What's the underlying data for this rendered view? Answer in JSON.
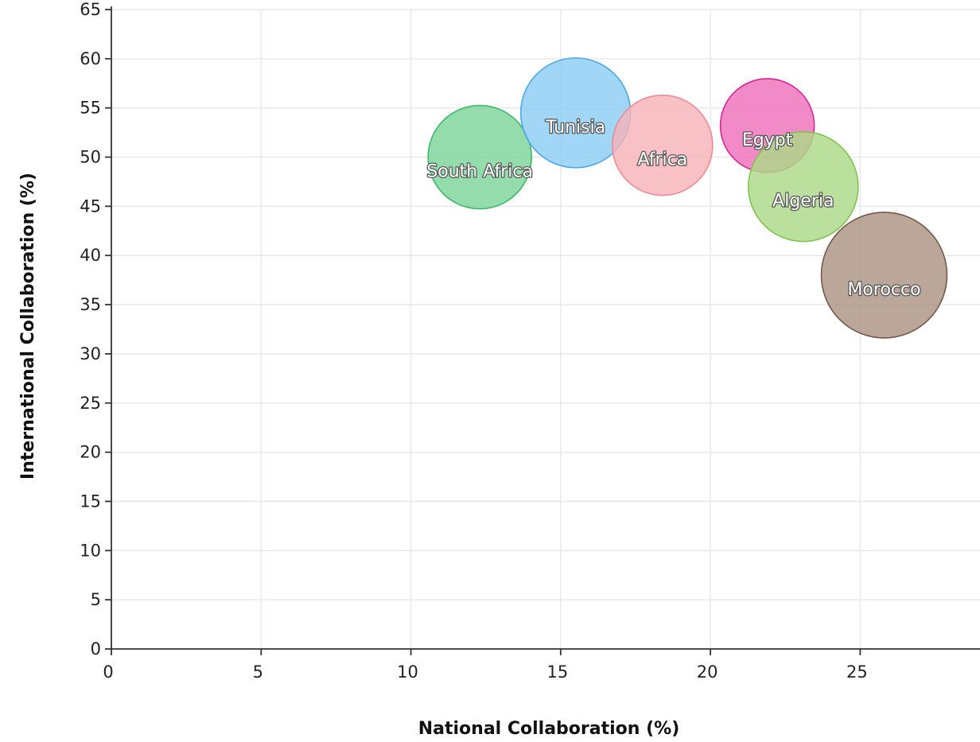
{
  "chart_data": {
    "type": "scatter",
    "xlabel": "National Collaboration (%)",
    "ylabel": "International Collaboration (%)",
    "xlim": [
      0,
      29
    ],
    "ylim": [
      0,
      65
    ],
    "xticks": [
      0,
      5,
      10,
      15,
      20,
      25
    ],
    "yticks": [
      0,
      5,
      10,
      15,
      20,
      25,
      30,
      35,
      40,
      45,
      50,
      55,
      60,
      65
    ],
    "grid": true,
    "series": [
      {
        "name": "South Africa",
        "x": 12.3,
        "y": 50.0,
        "color": "#7dd49a",
        "edge": "#3fb86a",
        "label_dx": 0,
        "label_dy": 1
      },
      {
        "name": "Tunisia",
        "x": 15.5,
        "y": 54.5,
        "color": "#8ecdf5",
        "edge": "#4aa8e8",
        "label_dx": 0,
        "label_dy": 1
      },
      {
        "name": "Africa",
        "x": 18.4,
        "y": 51.2,
        "color": "#f5b3b8",
        "edge": "#eb8c95",
        "label_dx": 0,
        "label_dy": 1
      },
      {
        "name": "Egypt",
        "x": 21.9,
        "y": 53.2,
        "color": "#ee70bb",
        "edge": "#d6259a",
        "label_dx": 0,
        "label_dy": 1
      },
      {
        "name": "Algeria",
        "x": 23.1,
        "y": 47.0,
        "color": "#acd987",
        "edge": "#80c44e",
        "label_dx": 0,
        "label_dy": 1
      },
      {
        "name": "Morocco",
        "x": 25.8,
        "y": 38.0,
        "color": "#ab9484",
        "edge": "#77584a",
        "label_dx": 0,
        "label_dy": 1
      }
    ]
  }
}
